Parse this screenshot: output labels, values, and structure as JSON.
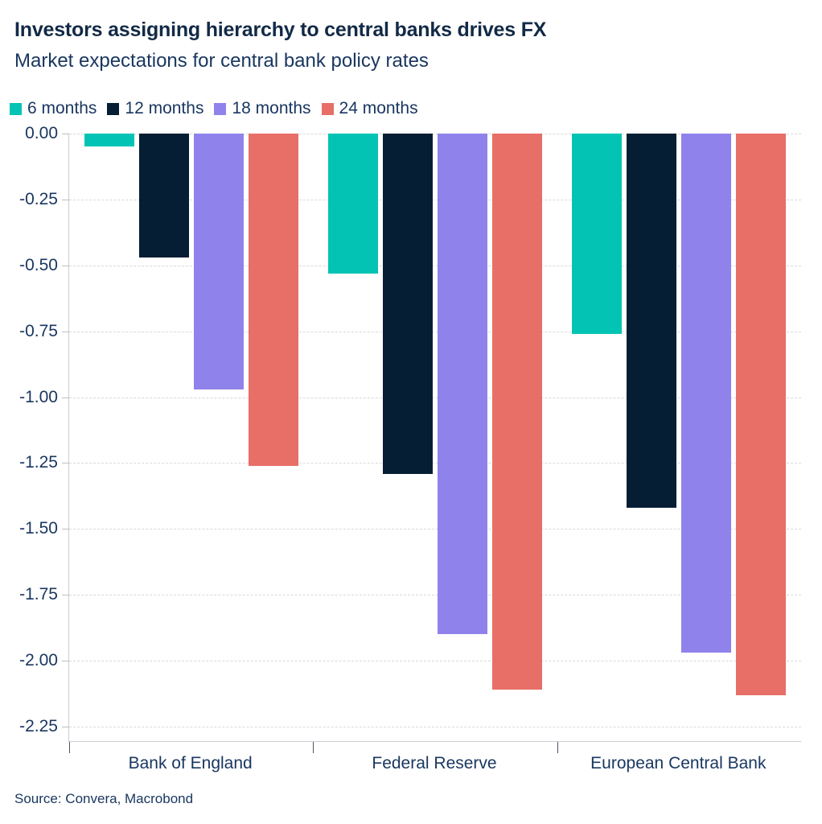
{
  "header": {
    "title": "Investors assigning hierarchy to central banks drives FX",
    "subtitle": "Market expectations for central bank policy rates"
  },
  "legend": {
    "position": "top-left",
    "items": [
      {
        "label": "6 months",
        "color": "#03C4B4"
      },
      {
        "label": "12 months",
        "color": "#051E33"
      },
      {
        "label": "18 months",
        "color": "#9082EB"
      },
      {
        "label": "24 months",
        "color": "#E76F68"
      }
    ]
  },
  "chart_data": {
    "type": "bar",
    "orientation": "vertical",
    "title": "Investors assigning hierarchy to central banks drives FX",
    "subtitle": "Market expectations for central bank policy rates",
    "categories": [
      "Bank of England",
      "Federal Reserve",
      "European Central Bank"
    ],
    "series": [
      {
        "name": "6 months",
        "color": "#03C4B4",
        "values": [
          -0.05,
          -0.53,
          -0.76
        ]
      },
      {
        "name": "12 months",
        "color": "#051E33",
        "values": [
          -0.47,
          -1.29,
          -1.42
        ]
      },
      {
        "name": "18 months",
        "color": "#9082EB",
        "values": [
          -0.97,
          -1.9,
          -1.97
        ]
      },
      {
        "name": "24 months",
        "color": "#E76F68",
        "values": [
          -1.26,
          -2.11,
          -2.13
        ]
      }
    ],
    "xlabel": "",
    "ylabel": "",
    "ylim": [
      -2.25,
      0.0
    ],
    "ytick_step": 0.25,
    "yticks": [
      "0.00",
      "-0.25",
      "-0.50",
      "-0.75",
      "-1.00",
      "-1.25",
      "-1.50",
      "-1.75",
      "-2.00",
      "-2.25"
    ],
    "grid": "horizontal-dashed",
    "legend_position": "top-left"
  },
  "source": {
    "text": "Source: Convera, Macrobond"
  },
  "colors": {
    "background": "#FFFFFF",
    "title_text": "#122A47",
    "text": "#1A3760",
    "gridline": "#D9D9D9",
    "axis_line": "#C9CDD2",
    "x_tick": "#4A5562",
    "y_tick": "#B9BFC6"
  }
}
